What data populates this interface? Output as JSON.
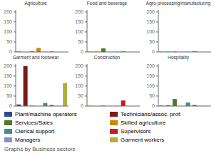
{
  "chart_data": [
    {
      "type": "bar",
      "title": "Agriculture",
      "categories": [
        "Plant/machine operators",
        "Technicians/assoc. prof.",
        "Services/Sales",
        "Skilled agriculture",
        "Clerical support",
        "Supervisors",
        "Managers",
        "Garment workers"
      ],
      "colors": [
        "#2e4d8a",
        "#7a1a1a",
        "#4a7a2a",
        "#cc8800",
        "#4a8a8a",
        "#cc1a1a",
        "#9090c0",
        "#b0b040"
      ],
      "values": [
        2,
        0,
        3,
        20,
        1,
        2,
        0,
        0
      ],
      "ylim": [
        0,
        210
      ],
      "yticks": [
        0,
        50,
        100,
        150,
        200
      ],
      "grid": false,
      "tick_labels": "y"
    },
    {
      "type": "bar",
      "title": "Food and beverage",
      "categories": [
        "Plant/machine operators",
        "Technicians/assoc. prof.",
        "Services/Sales",
        "Skilled agriculture",
        "Clerical support",
        "Supervisors",
        "Managers",
        "Garment workers"
      ],
      "colors": [
        "#2e4d8a",
        "#7a1a1a",
        "#4a7a2a",
        "#cc8800",
        "#4a8a8a",
        "#cc1a1a",
        "#9090c0",
        "#b0b040"
      ],
      "values": [
        1,
        1,
        18,
        0,
        1,
        2,
        0,
        0
      ],
      "ylim": [
        0,
        210
      ],
      "yticks": [
        0,
        50,
        100,
        150,
        200
      ],
      "grid": false,
      "tick_labels": "y"
    },
    {
      "type": "bar",
      "title": "Agro-processing/manufacturing",
      "categories": [
        "Plant/machine operators",
        "Technicians/assoc. prof.",
        "Services/Sales",
        "Skilled agriculture",
        "Clerical support",
        "Supervisors",
        "Managers",
        "Garment workers"
      ],
      "colors": [
        "#2e4d8a",
        "#7a1a1a",
        "#4a7a2a",
        "#cc8800",
        "#4a8a8a",
        "#cc1a1a",
        "#9090c0",
        "#b0b040"
      ],
      "values": [
        1,
        1,
        2,
        0,
        1,
        3,
        0,
        0
      ],
      "ylim": [
        0,
        210
      ],
      "yticks": [
        0,
        50,
        100,
        150,
        200
      ],
      "grid": false,
      "tick_labels": "y"
    },
    {
      "type": "bar",
      "title": "Garment and footwear",
      "categories": [
        "Plant/machine operators",
        "Technicians/assoc. prof.",
        "Services/Sales",
        "Skilled agriculture",
        "Clerical support",
        "Supervisors",
        "Managers",
        "Garment workers"
      ],
      "colors": [
        "#2e4d8a",
        "#7a1a1a",
        "#4a7a2a",
        "#cc8800",
        "#4a8a8a",
        "#cc1a1a",
        "#9090c0",
        "#b0b040"
      ],
      "values": [
        8,
        200,
        2,
        0,
        15,
        5,
        1,
        115
      ],
      "ylim": [
        0,
        210
      ],
      "yticks": [
        0,
        50,
        100,
        150,
        200
      ],
      "grid": false,
      "tick_labels": "y"
    },
    {
      "type": "bar",
      "title": "Construction",
      "categories": [
        "Plant/machine operators",
        "Technicians/assoc. prof.",
        "Services/Sales",
        "Skilled agriculture",
        "Clerical support",
        "Supervisors",
        "Managers",
        "Garment workers"
      ],
      "colors": [
        "#2e4d8a",
        "#7a1a1a",
        "#4a7a2a",
        "#cc8800",
        "#4a8a8a",
        "#cc1a1a",
        "#9090c0",
        "#b0b040"
      ],
      "values": [
        1,
        0,
        2,
        0,
        1,
        28,
        0,
        0
      ],
      "ylim": [
        0,
        210
      ],
      "yticks": [
        0,
        50,
        100,
        150,
        200
      ],
      "grid": false,
      "tick_labels": "y"
    },
    {
      "type": "bar",
      "title": "Hospitality",
      "categories": [
        "Plant/machine operators",
        "Technicians/assoc. prof.",
        "Services/Sales",
        "Skilled agriculture",
        "Clerical support",
        "Supervisors",
        "Managers",
        "Garment workers"
      ],
      "colors": [
        "#2e4d8a",
        "#7a1a1a",
        "#4a7a2a",
        "#cc8800",
        "#4a8a8a",
        "#cc1a1a",
        "#9090c0",
        "#b0b040"
      ],
      "values": [
        2,
        3,
        35,
        0,
        18,
        5,
        1,
        0
      ],
      "ylim": [
        0,
        210
      ],
      "yticks": [
        0,
        50,
        100,
        150,
        200
      ],
      "grid": false,
      "tick_labels": "y",
      "legend": "bottom",
      "annotations": [
        "Graphs by Business sectors"
      ]
    }
  ]
}
